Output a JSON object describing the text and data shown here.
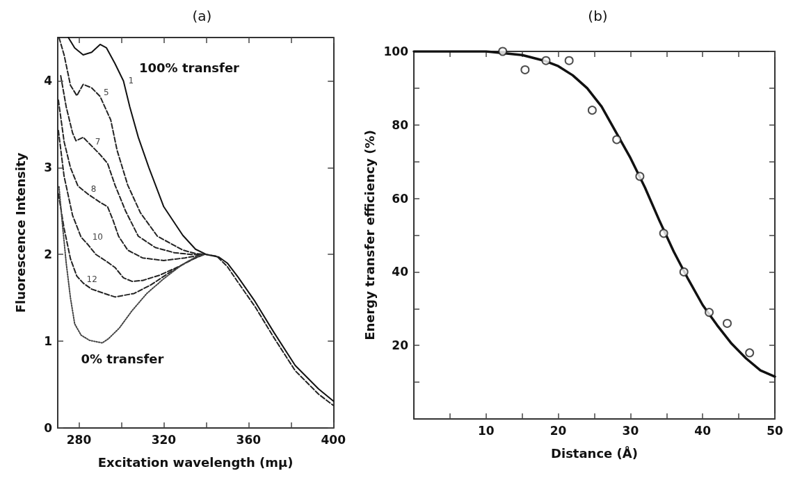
{
  "chart_data": [
    {
      "type": "line",
      "title": "(a)",
      "xlabel": "Excitation wavelength (mμ)",
      "ylabel": "Fluorescence Intensity",
      "xlim": [
        270,
        400
      ],
      "ylim": [
        0,
        4.5
      ],
      "xticks": [
        280,
        {
          "value": 300,
          "label": null
        },
        320,
        {
          "value": 340,
          "label": null
        },
        360,
        {
          "value": 380,
          "label": null
        },
        400
      ],
      "yticks": [
        0,
        1,
        2,
        3,
        4
      ],
      "grid": false,
      "marker": "none",
      "series": [
        {
          "name": "1",
          "color": "#111111",
          "line_style": "solid",
          "x": [
            275,
            278,
            282,
            286,
            290,
            293,
            297,
            301,
            304,
            308,
            313,
            320,
            329,
            335,
            340,
            346,
            350,
            355,
            363,
            372,
            382,
            393,
            400
          ],
          "values": [
            4.5,
            4.38,
            4.3,
            4.33,
            4.42,
            4.38,
            4.2,
            4.0,
            3.7,
            3.35,
            3.0,
            2.55,
            2.22,
            2.06,
            2.0,
            1.97,
            1.9,
            1.74,
            1.46,
            1.1,
            0.72,
            0.45,
            0.31
          ]
        },
        {
          "name": "5",
          "color": "#222222",
          "line_style": "dashed",
          "x": [
            270.6,
            273,
            276,
            279,
            282,
            286,
            290,
            295,
            298,
            303,
            309,
            317,
            329,
            335,
            340,
            345,
            350,
            355,
            363,
            372,
            382,
            393,
            400
          ],
          "values": [
            4.5,
            4.3,
            3.95,
            3.83,
            3.96,
            3.92,
            3.82,
            3.55,
            3.2,
            2.8,
            2.48,
            2.21,
            2.05,
            2.01,
            2.0,
            1.98,
            1.86,
            1.68,
            1.4,
            1.04,
            0.66,
            0.39,
            0.26
          ]
        },
        {
          "name": "7",
          "color": "#222222",
          "line_style": "dashed",
          "x": [
            271.4,
            274,
            277,
            278.6,
            282,
            286,
            290,
            293.5,
            297,
            302,
            308,
            316,
            325,
            333,
            339
          ],
          "values": [
            4.06,
            3.7,
            3.4,
            3.31,
            3.35,
            3.25,
            3.15,
            3.05,
            2.8,
            2.5,
            2.21,
            2.08,
            2.02,
            2.0,
            2.0
          ]
        },
        {
          "name": "8",
          "color": "#222222",
          "line_style": "dashed",
          "x": [
            270.3,
            273,
            276,
            279.5,
            284,
            290,
            293.5,
            296,
            298.7,
            303,
            310,
            320,
            330,
            339
          ],
          "values": [
            3.78,
            3.3,
            3.0,
            2.79,
            2.7,
            2.6,
            2.55,
            2.4,
            2.21,
            2.05,
            1.96,
            1.93,
            1.96,
            2.0
          ]
        },
        {
          "name": "10",
          "color": "#222222",
          "line_style": "dashed",
          "x": [
            270.3,
            273,
            277,
            281,
            284,
            288,
            293,
            297,
            301,
            305,
            310,
            318,
            328,
            334,
            339
          ],
          "values": [
            3.43,
            2.9,
            2.45,
            2.2,
            2.12,
            2.0,
            1.92,
            1.85,
            1.73,
            1.69,
            1.7,
            1.76,
            1.87,
            1.95,
            2.0
          ]
        },
        {
          "name": "12",
          "color": "#222222",
          "line_style": "dashed",
          "x": [
            270.3,
            273,
            276,
            279,
            282,
            286,
            292,
            297,
            306,
            314,
            322,
            330,
            336,
            339
          ],
          "values": [
            2.7,
            2.3,
            1.95,
            1.75,
            1.67,
            1.6,
            1.55,
            1.51,
            1.55,
            1.65,
            1.78,
            1.9,
            1.97,
            2.0
          ]
        },
        {
          "color": "#444444",
          "line_style": "dotted",
          "x": [
            270.6,
            272,
            274,
            276,
            278,
            281,
            285,
            291,
            294,
            299,
            305,
            312,
            320,
            328,
            335,
            339
          ],
          "values": [
            2.78,
            2.4,
            1.9,
            1.5,
            1.2,
            1.07,
            1.01,
            0.98,
            1.03,
            1.15,
            1.35,
            1.55,
            1.72,
            1.87,
            1.97,
            2.0
          ]
        }
      ],
      "annotations": [
        "100% transfer",
        "0% transfer"
      ]
    },
    {
      "type": "scatter",
      "title": "(b)",
      "xlabel": "Distance (Å)",
      "ylabel": "Energy transfer efficiency (%)",
      "xlim": [
        0,
        50
      ],
      "ylim": [
        0,
        100
      ],
      "xticks": [
        {
          "value": 5,
          "label": null
        },
        10,
        {
          "value": 15,
          "label": null
        },
        20,
        {
          "value": 25,
          "label": null
        },
        30,
        {
          "value": 35,
          "label": null
        },
        40,
        {
          "value": 45,
          "label": null
        },
        50
      ],
      "yticks": [
        {
          "value": 10,
          "label": null
        },
        20,
        {
          "value": 30,
          "label": null
        },
        40,
        {
          "value": 50,
          "label": null
        },
        60,
        {
          "value": 70,
          "label": null
        },
        80,
        {
          "value": 90,
          "label": null
        },
        100
      ],
      "grid": false,
      "series": [
        {
          "type": "line",
          "color": "#111111",
          "line_style": "solid",
          "marker": "none",
          "x": [
            0,
            10,
            15,
            18,
            20,
            22,
            24,
            26,
            28,
            30,
            32,
            34,
            36,
            38,
            40,
            42,
            44,
            46,
            48,
            50
          ],
          "values": [
            100,
            100,
            99,
            97.5,
            96,
            93.5,
            90,
            85,
            78,
            71,
            63,
            54,
            45.5,
            38,
            31,
            25.5,
            20.5,
            16.5,
            13.2,
            11.5
          ]
        },
        {
          "color": "#222222",
          "marker": "circle",
          "x": [
            12.3,
            15.4,
            18.3,
            21.5,
            24.7,
            28.1,
            31.3,
            34.6,
            37.4,
            40.9,
            43.4,
            46.5
          ],
          "values": [
            100,
            95,
            97.5,
            97.5,
            84,
            76,
            66,
            50.5,
            40,
            29,
            26,
            18
          ]
        }
      ]
    }
  ]
}
